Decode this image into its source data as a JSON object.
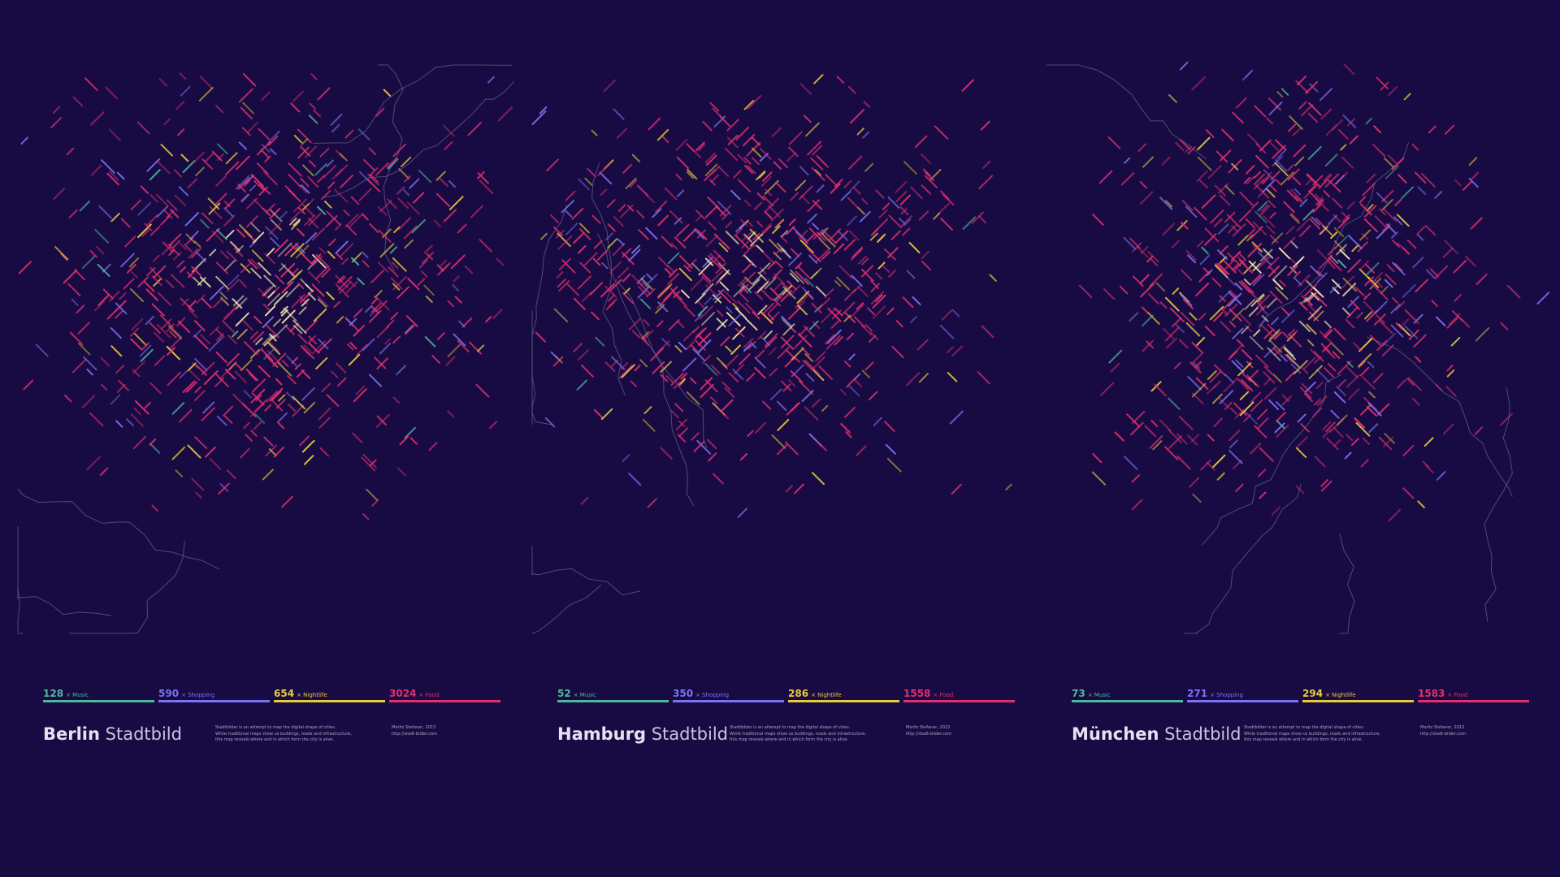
{
  "panels": [
    {
      "city": "Berlin",
      "suffix": "Stadtbild",
      "stats": [
        {
          "value": 128,
          "label": "× Music",
          "color": "#4fb89c"
        },
        {
          "value": 590,
          "label": "× Shopping",
          "color": "#7b74f2"
        },
        {
          "value": 654,
          "label": "× Nightlife",
          "color": "#e8cb3c"
        },
        {
          "value": 3024,
          "label": "× Food",
          "color": "#e2306f"
        }
      ],
      "description": [
        "Stadtbilder is an attempt to map the digital shape of cities.",
        "While traditional maps show us buildings, roads and infrastructure,",
        "this map reveals where and in which form the city is alive."
      ],
      "credit": [
        "Moritz Stefaner, 2013",
        "http://stadt-bilder.com"
      ]
    },
    {
      "city": "Hamburg",
      "suffix": "Stadtbild",
      "stats": [
        {
          "value": 52,
          "label": "× Music",
          "color": "#4fb89c"
        },
        {
          "value": 350,
          "label": "× Shopping",
          "color": "#7b74f2"
        },
        {
          "value": 286,
          "label": "× Nightlife",
          "color": "#e8cb3c"
        },
        {
          "value": 1558,
          "label": "× Food",
          "color": "#e2306f"
        }
      ],
      "description": [
        "Stadtbilder is an attempt to map the digital shape of cities.",
        "While traditional maps show us buildings, roads and infrastructure,",
        "this map reveals where and in which form the city is alive."
      ],
      "credit": [
        "Moritz Stefaner, 2013",
        "http://stadt-bilder.com"
      ]
    },
    {
      "city": "München",
      "suffix": "Stadtbild",
      "stats": [
        {
          "value": 73,
          "label": "× Music",
          "color": "#4fb89c"
        },
        {
          "value": 271,
          "label": "× Shopping",
          "color": "#7b74f2"
        },
        {
          "value": 294,
          "label": "× Nightlife",
          "color": "#e8cb3c"
        },
        {
          "value": 1583,
          "label": "× Food",
          "color": "#e2306f"
        }
      ],
      "description": [
        "Stadtbilder is an attempt to map the digital shape of cities.",
        "While traditional maps show us buildings, roads and infrastructure,",
        "this map reveals where and in which form the city is alive."
      ],
      "credit": [
        "Moritz Stefaner, 2013",
        "http://stadt-bilder.com"
      ]
    }
  ]
}
